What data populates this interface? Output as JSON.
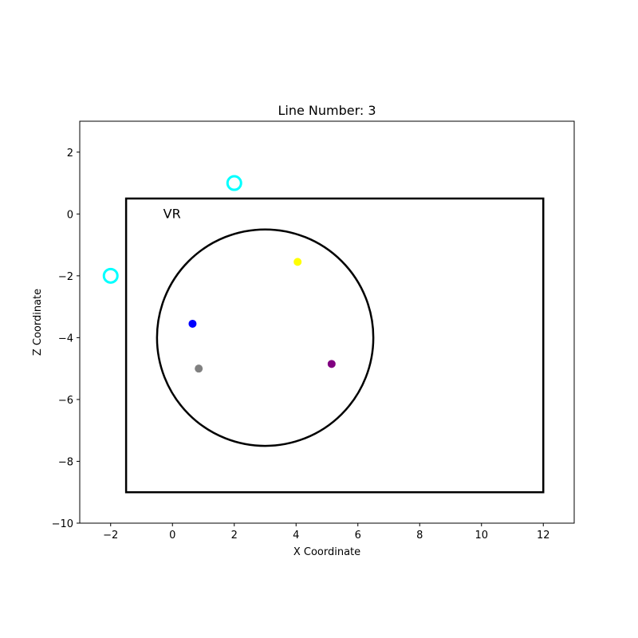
{
  "chart_data": {
    "type": "scatter",
    "title": "Line Number: 3",
    "xlabel": "X Coordinate",
    "ylabel": "Z Coordinate",
    "xlim": [
      -3,
      13
    ],
    "ylim": [
      -10,
      3
    ],
    "xticks": [
      -2,
      0,
      2,
      4,
      6,
      8,
      10,
      12
    ],
    "yticks": [
      -10,
      -8,
      -6,
      -4,
      -2,
      0,
      2
    ],
    "xtick_labels": [
      "−2",
      "0",
      "2",
      "4",
      "6",
      "8",
      "10",
      "12"
    ],
    "ytick_labels": [
      "−10",
      "−8",
      "−6",
      "−4",
      "−2",
      "0",
      "2"
    ],
    "grid": false,
    "rectangle": {
      "x0": -1.5,
      "y0": -9,
      "x1": 12,
      "y1": 0.5,
      "color": "#000000"
    },
    "circle": {
      "cx": 3,
      "cy": -4,
      "r": 3.5,
      "color": "#000000"
    },
    "annotation": {
      "text": "VR",
      "x": -0.3,
      "y": 0
    },
    "points": [
      {
        "x": 4.05,
        "y": -1.55,
        "color": "#ffff00"
      },
      {
        "x": 0.65,
        "y": -3.55,
        "color": "#0000ff"
      },
      {
        "x": 0.85,
        "y": -5.0,
        "color": "#808080"
      },
      {
        "x": 5.15,
        "y": -4.85,
        "color": "#800080"
      }
    ],
    "hollow_points": [
      {
        "x": 2,
        "y": 1,
        "color": "#00ffff"
      },
      {
        "x": -2,
        "y": -2,
        "color": "#00ffff"
      }
    ]
  }
}
